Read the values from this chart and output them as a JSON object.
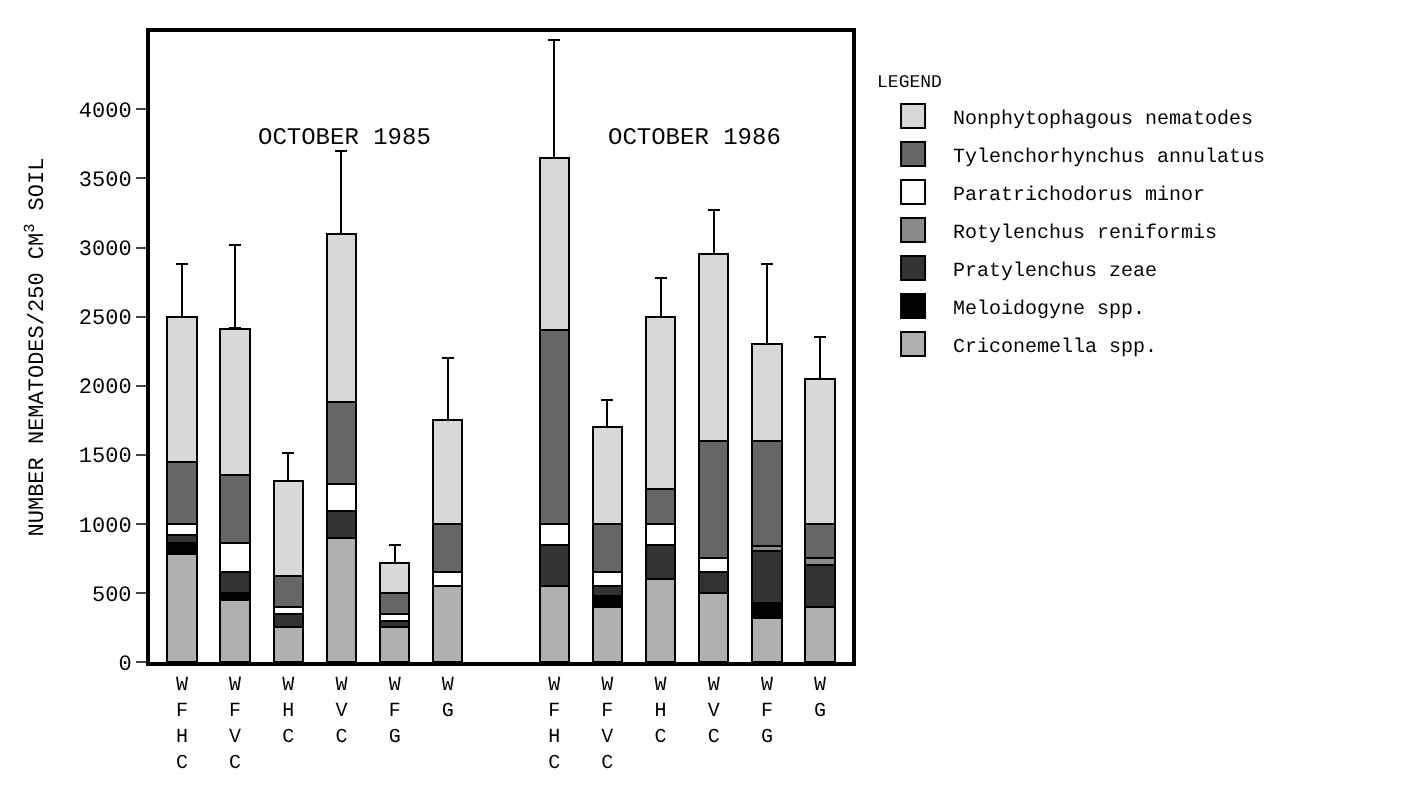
{
  "chart_data": {
    "type": "bar",
    "stacked": true,
    "ylabel": "NUMBER NEMATODES/250 CM$^{3}$ SOIL",
    "legend_title": "LEGEND",
    "legend": "right",
    "categories": [
      "WFHC",
      "WFVC",
      "WHC",
      "WVC",
      "WFG",
      "WG",
      null,
      "WFHC",
      "WFVC",
      "WHC",
      "WVC",
      "WFG",
      "WG"
    ],
    "ylim": [
      0,
      4560
    ],
    "yticks": [
      0,
      500,
      1000,
      1500,
      2000,
      2500,
      3000,
      3500,
      4000
    ],
    "annotations": [
      "OCTOBER 1985",
      "OCTOBER 1986"
    ],
    "series": [
      {
        "name": "Criconemella spp.",
        "color": "#b0b0b0",
        "values": [
          780,
          450,
          250,
          900,
          250,
          550,
          null,
          550,
          400,
          600,
          500,
          320,
          400
        ]
      },
      {
        "name": "Meloidogyne spp.",
        "color": "#000000",
        "values": [
          80,
          50,
          0,
          0,
          0,
          0,
          null,
          0,
          80,
          0,
          0,
          110,
          0
        ]
      },
      {
        "name": "Pratylenchus zeae",
        "color": "#333333",
        "values": [
          60,
          150,
          100,
          190,
          50,
          0,
          null,
          300,
          70,
          250,
          150,
          370,
          300
        ]
      },
      {
        "name": "Rotylenchus reniformis",
        "color": "#8a8a8a",
        "values": [
          0,
          0,
          0,
          0,
          0,
          0,
          null,
          0,
          0,
          0,
          0,
          40,
          50
        ]
      },
      {
        "name": "Paratrichodorus minor",
        "color": "#ffffff",
        "values": [
          80,
          210,
          50,
          200,
          50,
          100,
          null,
          150,
          100,
          150,
          100,
          0,
          0
        ]
      },
      {
        "name": "Tylenchorhynchus annulatus",
        "color": "#666666",
        "values": [
          450,
          490,
          220,
          590,
          150,
          350,
          null,
          1400,
          350,
          250,
          850,
          760,
          250
        ]
      },
      {
        "name": "Nonphytophagous nematodes",
        "color": "#d8d8d8",
        "values": [
          1050,
          1060,
          690,
          1220,
          220,
          750,
          null,
          1250,
          700,
          1250,
          1350,
          700,
          1050
        ],
        "errors": [
          [
            2500,
            2880
          ],
          [
            2420,
            3020
          ],
          [
            1310,
            1510
          ],
          [
            3100,
            3700
          ],
          [
            720,
            850
          ],
          [
            1750,
            2200
          ],
          null,
          [
            3650,
            4500
          ],
          [
            1700,
            1900
          ],
          [
            2500,
            2780
          ],
          [
            2950,
            3270
          ],
          [
            2300,
            2880
          ],
          [
            2050,
            2350
          ]
        ]
      }
    ]
  }
}
